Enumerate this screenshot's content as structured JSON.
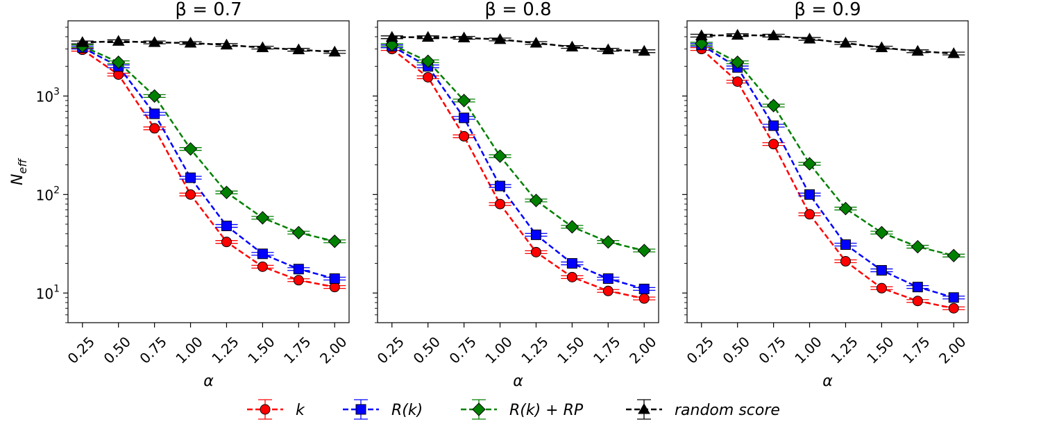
{
  "chart_data": {
    "type": "line",
    "ylabel": "N",
    "ylabel_sub": "eff",
    "y_scale": "log",
    "y_ticks": [
      "10",
      "10",
      "10"
    ],
    "y_tick_exponents": [
      "1",
      "2",
      "3"
    ],
    "y_tick_values": [
      10,
      100,
      1000
    ],
    "xlabel": "α",
    "x_tick_labels": [
      "0.25",
      "0.50",
      "0.75",
      "1.00",
      "1.25",
      "1.50",
      "1.75",
      "2.00"
    ],
    "x": [
      0.25,
      0.5,
      0.75,
      1.0,
      1.25,
      1.5,
      1.75,
      2.0
    ],
    "xlim": [
      0.15,
      2.1
    ],
    "ylim": [
      5,
      5800
    ],
    "legend": [
      {
        "name": "k",
        "color": "#ff0000",
        "marker": "circle"
      },
      {
        "name": "R(k)",
        "color": "#0000ff",
        "marker": "square"
      },
      {
        "name": "R(k) + RP",
        "color": "#008000",
        "marker": "diamond"
      },
      {
        "name": "random score",
        "color": "#000000",
        "marker": "triangle"
      }
    ],
    "panels": [
      {
        "title": "β = 0.7",
        "series": [
          {
            "name": "k",
            "values": [
              2950,
              1650,
              470,
              100,
              33,
              18.5,
              13.5,
              11.5
            ]
          },
          {
            "name": "R(k)",
            "values": [
              3100,
              2000,
              660,
              148,
              48,
              25,
              17.5,
              14
            ]
          },
          {
            "name": "R(k) + RP",
            "values": [
              3200,
              2200,
              1000,
              290,
              105,
              58,
              41,
              33.5
            ]
          },
          {
            "name": "random score",
            "values": [
              3500,
              3600,
              3500,
              3450,
              3300,
              3100,
              2950,
              2800
            ]
          }
        ]
      },
      {
        "title": "β = 0.8",
        "series": [
          {
            "name": "k",
            "values": [
              3000,
              1550,
              390,
              80,
              26,
              14.5,
              10.5,
              8.8
            ]
          },
          {
            "name": "R(k)",
            "values": [
              3200,
              2000,
              600,
              122,
              39,
              20,
              14,
              11
            ]
          },
          {
            "name": "R(k) + RP",
            "values": [
              3300,
              2250,
              900,
              245,
              87,
              47,
              33,
              27
            ]
          },
          {
            "name": "random score",
            "values": [
              3950,
              3950,
              3900,
              3750,
              3450,
              3150,
              2950,
              2850
            ]
          }
        ]
      },
      {
        "title": "β = 0.9",
        "series": [
          {
            "name": "k",
            "values": [
              3000,
              1400,
              325,
              63,
              21,
              11.2,
              8.3,
              7
            ]
          },
          {
            "name": "R(k)",
            "values": [
              3300,
              1950,
              500,
              100,
              31,
              17,
              11.5,
              9
            ]
          },
          {
            "name": "R(k) + RP",
            "values": [
              3400,
              2200,
              800,
              205,
              72,
              41,
              29.5,
              24
            ]
          },
          {
            "name": "random score",
            "values": [
              4100,
              4150,
              4100,
              3800,
              3450,
              3100,
              2850,
              2700
            ]
          }
        ]
      }
    ]
  }
}
